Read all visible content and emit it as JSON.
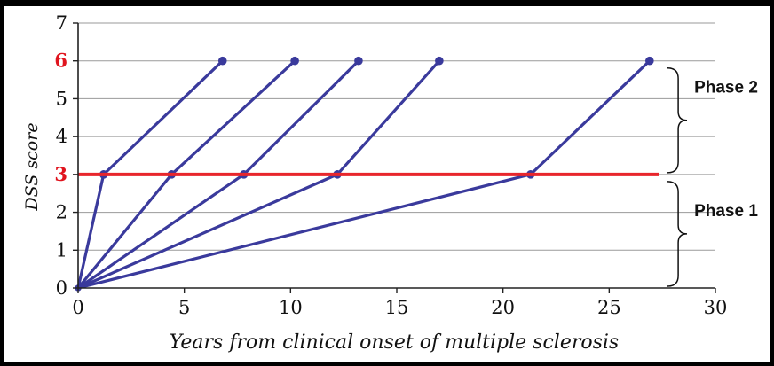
{
  "chart_data": {
    "type": "line",
    "xlabel": "Years from clinical onset of multiple sclerosis",
    "ylabel": "DSS score",
    "xlim": [
      0,
      30
    ],
    "ylim": [
      0,
      7
    ],
    "x_ticks": [
      "0",
      "5",
      "10",
      "15",
      "20",
      "25",
      "30"
    ],
    "y_ticks": [
      "0",
      "1",
      "2",
      "3",
      "4",
      "5",
      "6",
      "7"
    ],
    "highlighted_y_ticks": [
      "3",
      "6"
    ],
    "grid": "horizontal",
    "series": [
      {
        "x": [
          0,
          1.2,
          6.8
        ],
        "y": [
          0,
          3,
          6
        ]
      },
      {
        "x": [
          0,
          4.4,
          10.2
        ],
        "y": [
          0,
          3,
          6
        ]
      },
      {
        "x": [
          0,
          7.8,
          13.2
        ],
        "y": [
          0,
          3,
          6
        ]
      },
      {
        "x": [
          0,
          12.2,
          17.0
        ],
        "y": [
          0,
          3,
          6
        ]
      },
      {
        "x": [
          0,
          21.3,
          26.9
        ],
        "y": [
          0,
          3,
          6
        ]
      }
    ],
    "series_color": "#3a3a9c",
    "threshold": {
      "y": 3,
      "x_range": [
        0,
        27
      ],
      "color": "#e8262c"
    },
    "annotations": [
      {
        "label": "Phase 2",
        "y_range": [
          3,
          6
        ]
      },
      {
        "label": "Phase 1",
        "y_range": [
          0,
          3
        ]
      }
    ]
  }
}
